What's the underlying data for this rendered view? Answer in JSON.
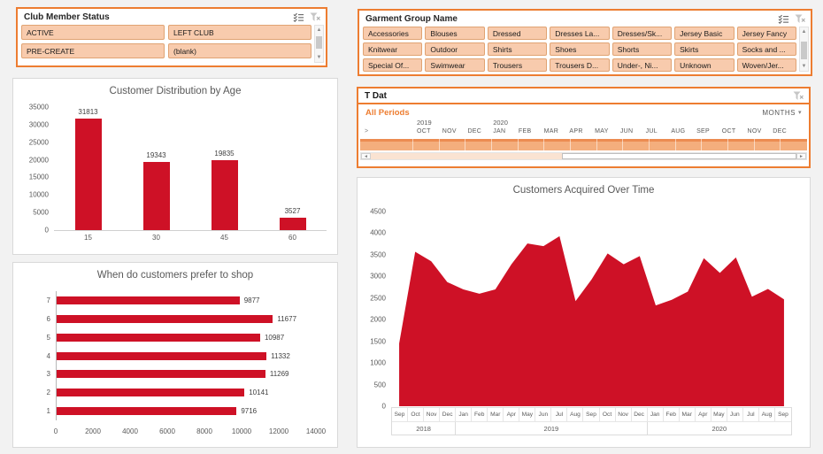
{
  "colors": {
    "accent_orange": "#ED7D31",
    "series_red": "#CE1126",
    "slicer_button_fill": "#F8CBAD",
    "slicer_button_border": "#E0A373",
    "title_gray": "#595959"
  },
  "icons": {
    "multi_select": "checklist",
    "clear_filter": "funnel-x",
    "scroll_up": "▲",
    "scroll_down": "▼",
    "scroll_left": "◄",
    "scroll_right": "►",
    "dropdown_caret": "▼",
    "prev_period": ">"
  },
  "slicers": {
    "club": {
      "title": "Club Member Status",
      "items": [
        "ACTIVE",
        "LEFT CLUB",
        "PRE-CREATE",
        "(blank)"
      ]
    },
    "garment": {
      "title": "Garment Group Name",
      "items": [
        "Accessories",
        "Blouses",
        "Dressed",
        "Dresses La...",
        "Dresses/Sk...",
        "Jersey Basic",
        "Jersey Fancy",
        "Knitwear",
        "Outdoor",
        "Shirts",
        "Shoes",
        "Shorts",
        "Skirts",
        "Socks and ...",
        "Special Of...",
        "Swimwear",
        "Trousers",
        "Trousers D...",
        "Under-, Ni...",
        "Unknown",
        "Woven/Jer..."
      ]
    }
  },
  "timeline": {
    "title": "T Dat",
    "period_label": "All Periods",
    "granularity": "MONTHS",
    "prefix": ">",
    "months": [
      "OCT",
      "NOV",
      "DEC",
      "JAN",
      "FEB",
      "MAR",
      "APR",
      "MAY",
      "JUN",
      "JUL",
      "AUG",
      "SEP",
      "OCT",
      "NOV",
      "DEC"
    ],
    "years": [
      {
        "label": "2019",
        "cell": 0
      },
      {
        "label": "2020",
        "cell": 3
      }
    ]
  },
  "chart_data": [
    {
      "type": "bar",
      "title": "Customer Distribution by Age",
      "categories": [
        "15",
        "30",
        "45",
        "60"
      ],
      "values": [
        31813,
        19343,
        19835,
        3527
      ],
      "ylim": [
        0,
        35000
      ],
      "ytick_step": 5000,
      "data_labels": true,
      "grid": false,
      "bar_color": "#CE1126"
    },
    {
      "type": "bar",
      "orientation": "horizontal",
      "title": "When do customers prefer to shop",
      "categories": [
        "7",
        "6",
        "5",
        "4",
        "3",
        "2",
        "1"
      ],
      "values": [
        9877,
        11677,
        10987,
        11332,
        11269,
        10141,
        9716
      ],
      "xlim": [
        0,
        14000
      ],
      "xtick_step": 2000,
      "data_labels": true,
      "grid": false,
      "bar_color": "#CE1126"
    },
    {
      "type": "area",
      "title": "Customers Acquired Over Time",
      "x": [
        "Sep",
        "Oct",
        "Nov",
        "Dec",
        "Jan",
        "Feb",
        "Mar",
        "Apr",
        "May",
        "Jun",
        "Jul",
        "Aug",
        "Sep",
        "Oct",
        "Nov",
        "Dec",
        "Jan",
        "Feb",
        "Mar",
        "Apr",
        "May",
        "Jun",
        "Jul",
        "Aug",
        "Sep"
      ],
      "year_groups": [
        {
          "label": "2018",
          "span": 4
        },
        {
          "label": "2019",
          "span": 12
        },
        {
          "label": "2020",
          "span": 9
        }
      ],
      "values": [
        1450,
        3570,
        3350,
        2870,
        2700,
        2600,
        2700,
        3280,
        3760,
        3700,
        3930,
        2430,
        2930,
        3530,
        3280,
        3470,
        2330,
        2460,
        2650,
        3420,
        3080,
        3440,
        2530,
        2710,
        2470
      ],
      "ylim": [
        0,
        4500
      ],
      "ytick_step": 500,
      "grid": false,
      "fill_color": "#CE1126"
    }
  ]
}
